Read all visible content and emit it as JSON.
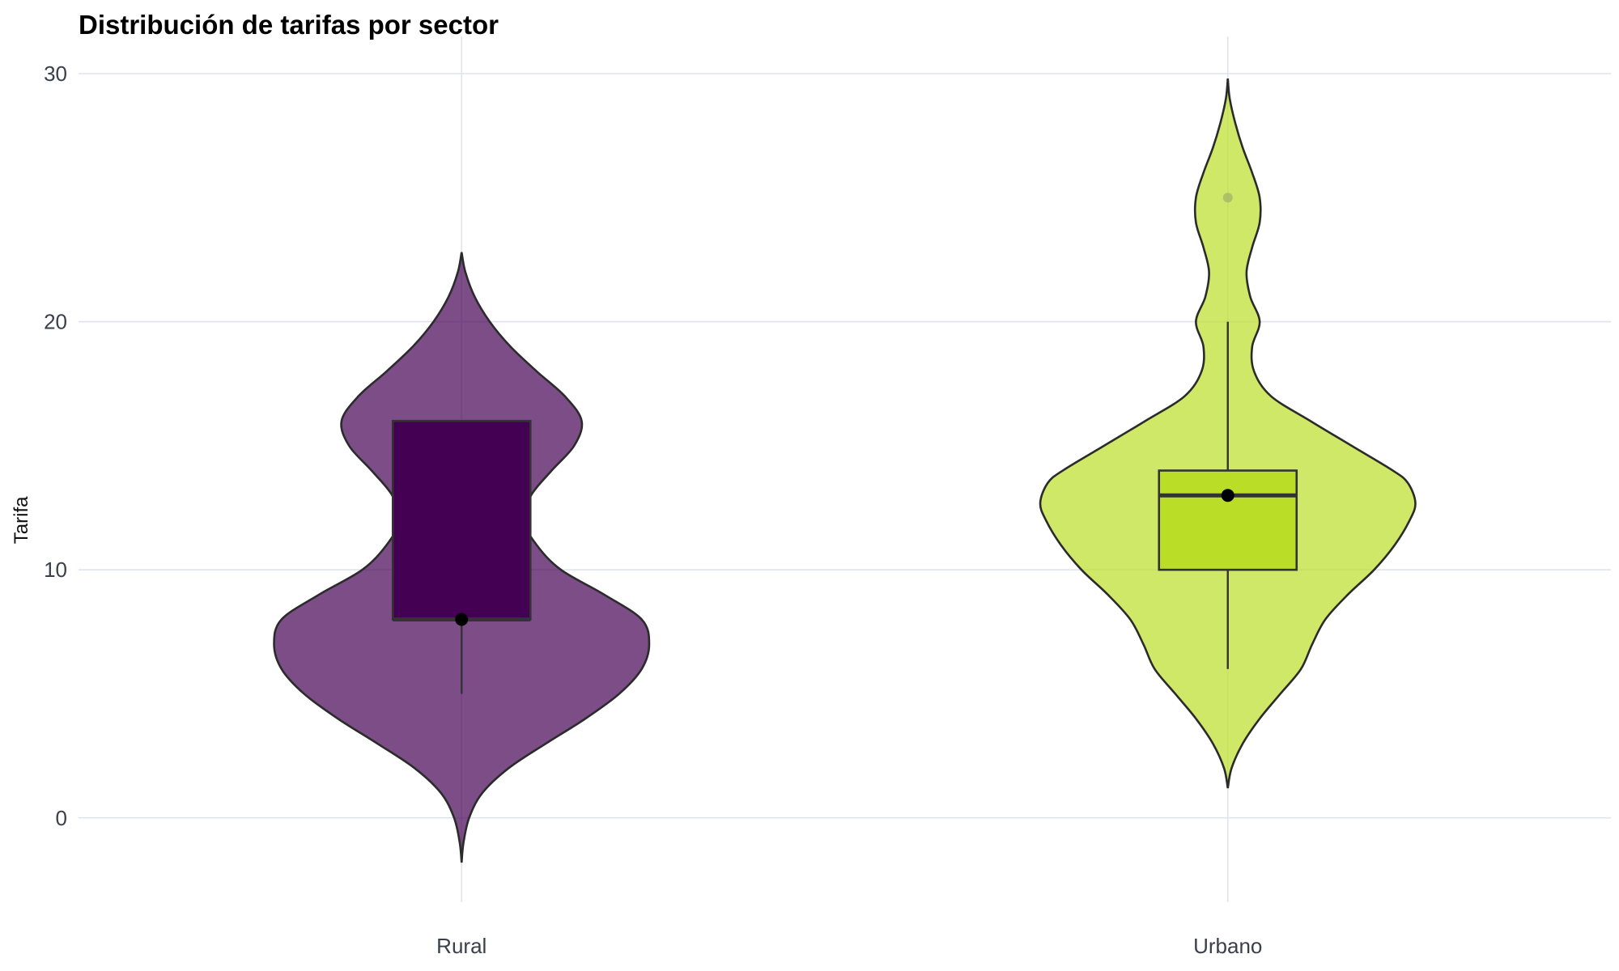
{
  "chart_data": {
    "type": "violin",
    "title": "Distribución de tarifas por sector",
    "xlabel": "",
    "ylabel": "Tarifa",
    "ylim": [
      -3.4,
      31.5
    ],
    "y_ticks": [
      0,
      10,
      20,
      30
    ],
    "grid": true,
    "categories": [
      "Rural",
      "Urbano"
    ],
    "colors": {
      "Rural": "#440154",
      "Urbano": "#BADE28"
    },
    "groups": [
      {
        "name": "Rural",
        "box": {
          "whisker_low": 5,
          "q1": 8,
          "median": 8,
          "q3": 16,
          "whisker_high": 16
        },
        "mean": 8,
        "outliers": [],
        "violin_range": [
          -1.8,
          22.8
        ],
        "density": [
          [
            -1.8,
            0.0
          ],
          [
            -1.0,
            0.01
          ],
          [
            0.0,
            0.04
          ],
          [
            1.0,
            0.11
          ],
          [
            2.0,
            0.25
          ],
          [
            3.0,
            0.45
          ],
          [
            4.0,
            0.66
          ],
          [
            5.0,
            0.84
          ],
          [
            6.0,
            0.96
          ],
          [
            7.0,
            1.0
          ],
          [
            8.0,
            0.96
          ],
          [
            9.0,
            0.76
          ],
          [
            10.0,
            0.53
          ],
          [
            11.0,
            0.4
          ],
          [
            12.0,
            0.33
          ],
          [
            13.0,
            0.37
          ],
          [
            14.0,
            0.48
          ],
          [
            15.0,
            0.6
          ],
          [
            16.0,
            0.64
          ],
          [
            17.0,
            0.55
          ],
          [
            18.0,
            0.4
          ],
          [
            19.0,
            0.26
          ],
          [
            20.0,
            0.15
          ],
          [
            21.0,
            0.07
          ],
          [
            22.0,
            0.02
          ],
          [
            22.8,
            0.0
          ]
        ]
      },
      {
        "name": "Urbano",
        "box": {
          "whisker_low": 6,
          "q1": 10,
          "median": 13,
          "q3": 14,
          "whisker_high": 20
        },
        "mean": 13,
        "outliers": [
          25
        ],
        "violin_range": [
          1.2,
          29.8
        ],
        "density": [
          [
            1.2,
            0.0
          ],
          [
            2.0,
            0.02
          ],
          [
            3.0,
            0.08
          ],
          [
            4.0,
            0.17
          ],
          [
            5.0,
            0.28
          ],
          [
            6.0,
            0.39
          ],
          [
            7.0,
            0.45
          ],
          [
            8.0,
            0.52
          ],
          [
            9.0,
            0.64
          ],
          [
            10.0,
            0.78
          ],
          [
            11.0,
            0.89
          ],
          [
            12.0,
            0.97
          ],
          [
            12.7,
            1.0
          ],
          [
            13.5,
            0.96
          ],
          [
            14.0,
            0.88
          ],
          [
            15.0,
            0.66
          ],
          [
            16.0,
            0.44
          ],
          [
            17.0,
            0.23
          ],
          [
            18.0,
            0.14
          ],
          [
            19.0,
            0.13
          ],
          [
            20.0,
            0.17
          ],
          [
            21.0,
            0.12
          ],
          [
            22.0,
            0.1
          ],
          [
            23.0,
            0.13
          ],
          [
            24.0,
            0.17
          ],
          [
            25.0,
            0.17
          ],
          [
            26.0,
            0.13
          ],
          [
            27.0,
            0.08
          ],
          [
            28.0,
            0.04
          ],
          [
            29.0,
            0.01
          ],
          [
            29.8,
            0.0
          ]
        ]
      }
    ]
  }
}
